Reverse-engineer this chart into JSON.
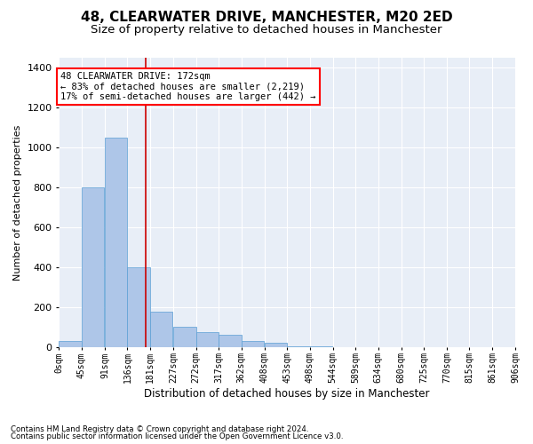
{
  "title": "48, CLEARWATER DRIVE, MANCHESTER, M20 2ED",
  "subtitle": "Size of property relative to detached houses in Manchester",
  "xlabel": "Distribution of detached houses by size in Manchester",
  "ylabel": "Number of detached properties",
  "footnote1": "Contains HM Land Registry data © Crown copyright and database right 2024.",
  "footnote2": "Contains public sector information licensed under the Open Government Licence v3.0.",
  "annotation_line1": "48 CLEARWATER DRIVE: 172sqm",
  "annotation_line2": "← 83% of detached houses are smaller (2,219)",
  "annotation_line3": "17% of semi-detached houses are larger (442) →",
  "bar_color": "#aec6e8",
  "bar_edge_color": "#5a9fd4",
  "vline_x": 172,
  "vline_color": "#cc0000",
  "bin_edges": [
    0,
    45,
    91,
    136,
    181,
    227,
    272,
    317,
    362,
    408,
    453,
    498,
    544,
    589,
    634,
    680,
    725,
    770,
    815,
    861,
    906
  ],
  "bin_labels": [
    "0sqm",
    "45sqm",
    "91sqm",
    "136sqm",
    "181sqm",
    "227sqm",
    "272sqm",
    "317sqm",
    "362sqm",
    "408sqm",
    "453sqm",
    "498sqm",
    "544sqm",
    "589sqm",
    "634sqm",
    "680sqm",
    "725sqm",
    "770sqm",
    "815sqm",
    "861sqm",
    "906sqm"
  ],
  "bar_heights": [
    30,
    800,
    1050,
    400,
    175,
    100,
    75,
    60,
    30,
    20,
    5,
    5,
    0,
    0,
    0,
    0,
    0,
    0,
    0,
    0
  ],
  "ylim": [
    0,
    1450
  ],
  "yticks": [
    0,
    200,
    400,
    600,
    800,
    1000,
    1200,
    1400
  ],
  "plot_background": "#e8eef7",
  "title_fontsize": 11,
  "subtitle_fontsize": 9.5
}
